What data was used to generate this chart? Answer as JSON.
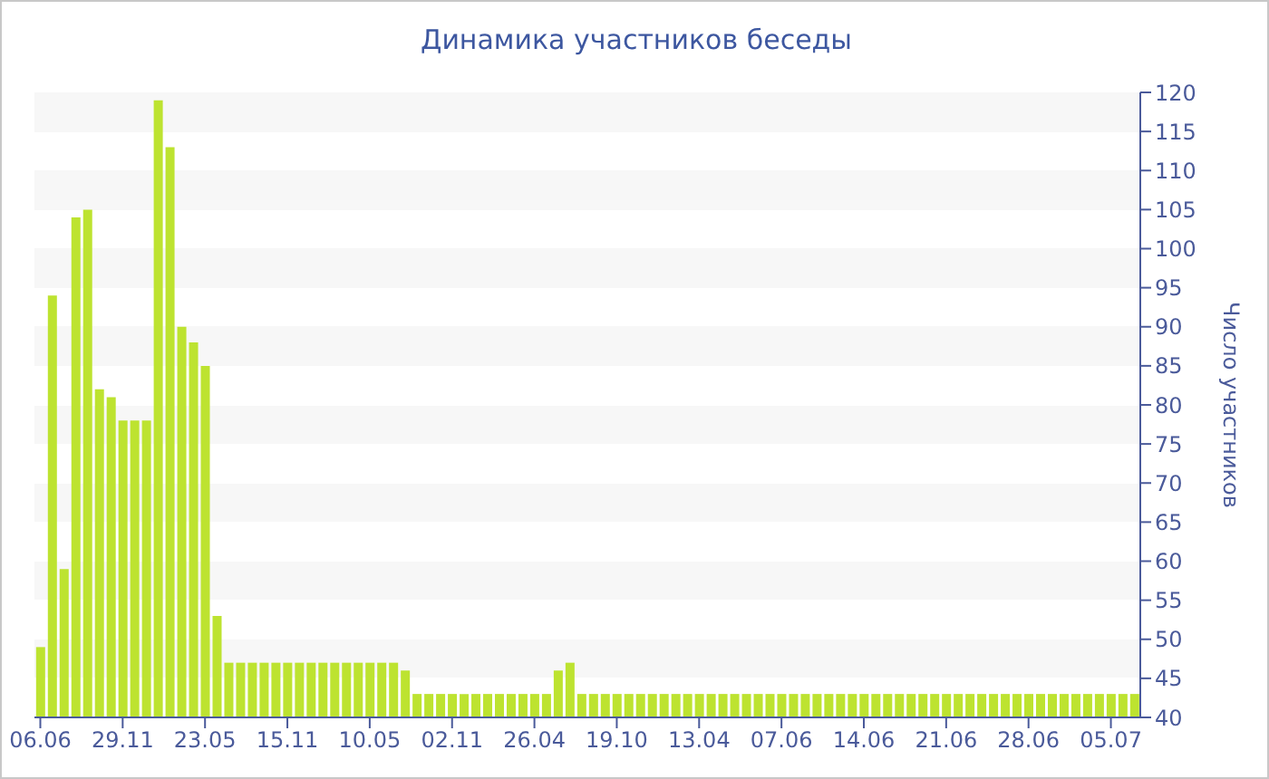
{
  "chart_data": {
    "type": "bar",
    "title": "Динамика участников беседы",
    "ylabel": "Число участников",
    "categories": [
      "06.06",
      null,
      null,
      null,
      null,
      null,
      null,
      "29.11",
      null,
      null,
      null,
      null,
      null,
      null,
      "23.05",
      null,
      null,
      null,
      null,
      null,
      null,
      "15.11",
      null,
      null,
      null,
      null,
      null,
      null,
      "10.05",
      null,
      null,
      null,
      null,
      null,
      null,
      "02.11",
      null,
      null,
      null,
      null,
      null,
      null,
      "26.04",
      null,
      null,
      null,
      null,
      null,
      null,
      "19.10",
      null,
      null,
      null,
      null,
      null,
      null,
      "13.04",
      null,
      null,
      null,
      null,
      null,
      null,
      "07.06",
      null,
      null,
      null,
      null,
      null,
      null,
      "14.06",
      null,
      null,
      null,
      null,
      null,
      null,
      "21.06",
      null,
      null,
      null,
      null,
      null,
      null,
      "28.06",
      null,
      null,
      null,
      null,
      null,
      null,
      "05.07",
      null,
      null
    ],
    "values": [
      49,
      94,
      59,
      104,
      105,
      82,
      81,
      78,
      78,
      78,
      119,
      113,
      90,
      88,
      85,
      53,
      47,
      47,
      47,
      47,
      47,
      47,
      47,
      47,
      47,
      47,
      47,
      47,
      47,
      47,
      47,
      46,
      43,
      43,
      43,
      43,
      43,
      43,
      43,
      43,
      43,
      43,
      43,
      43,
      46,
      47,
      43,
      43,
      43,
      43,
      43,
      43,
      43,
      43,
      43,
      43,
      43,
      43,
      43,
      43,
      43,
      43,
      43,
      43,
      43,
      43,
      43,
      43,
      43,
      43,
      43,
      43,
      43,
      43,
      43,
      43,
      43,
      43,
      43,
      43,
      43,
      43,
      43,
      43,
      43,
      43,
      43,
      43,
      43,
      43,
      43,
      43,
      43,
      43
    ],
    "color": "#bde330",
    "ylim": [
      40,
      120
    ],
    "yticks": [
      40,
      45,
      50,
      55,
      60,
      65,
      70,
      75,
      80,
      85,
      90,
      95,
      100,
      105,
      110,
      115,
      120
    ]
  }
}
